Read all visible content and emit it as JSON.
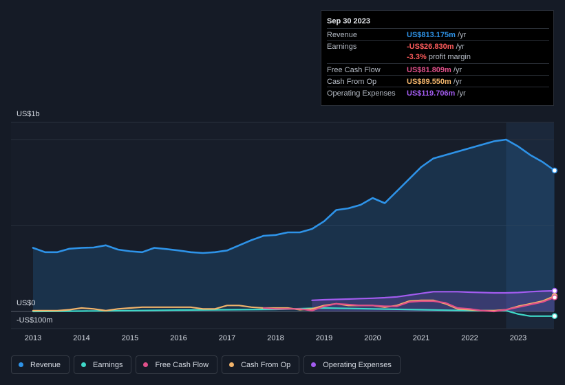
{
  "tooltip": {
    "date": "Sep 30 2023",
    "rows": [
      {
        "label": "Revenue",
        "value": "US$813.175m",
        "unit": "/yr",
        "color": "#2e93e8"
      },
      {
        "label": "Earnings",
        "value": "-US$26.830m",
        "unit": "/yr",
        "color": "#ff5c5c"
      },
      {
        "label": "Free Cash Flow",
        "value": "US$81.809m",
        "unit": "/yr",
        "color": "#e0508a"
      },
      {
        "label": "Cash From Op",
        "value": "US$89.550m",
        "unit": "/yr",
        "color": "#f2b46b"
      },
      {
        "label": "Operating Expenses",
        "value": "US$119.706m",
        "unit": "/yr",
        "color": "#a35cf0"
      }
    ],
    "margin_pct": "-3.3%",
    "margin_text": "profit margin"
  },
  "y_labels": {
    "top": "US$1b",
    "zero": "US$0",
    "bottom": "-US$100m"
  },
  "chart_data": {
    "type": "line",
    "title": "",
    "xlabel": "",
    "ylabel": "",
    "ylim": [
      -100,
      1100
    ],
    "x_ticks": [
      "2013",
      "2014",
      "2015",
      "2016",
      "2017",
      "2018",
      "2019",
      "2020",
      "2021",
      "2022",
      "2023"
    ],
    "highlight_start": 2022.75,
    "series": [
      {
        "name": "Revenue",
        "color": "#2e93e8",
        "fill": true,
        "x": [
          2013.0,
          2013.25,
          2013.5,
          2013.75,
          2014.0,
          2014.25,
          2014.5,
          2014.75,
          2015.0,
          2015.25,
          2015.5,
          2015.75,
          2016.0,
          2016.25,
          2016.5,
          2016.75,
          2017.0,
          2017.25,
          2017.5,
          2017.75,
          2018.0,
          2018.25,
          2018.5,
          2018.75,
          2019.0,
          2019.25,
          2019.5,
          2019.75,
          2020.0,
          2020.25,
          2020.5,
          2020.75,
          2021.0,
          2021.25,
          2021.5,
          2021.75,
          2022.0,
          2022.25,
          2022.5,
          2022.75,
          2023.0,
          2023.25,
          2023.5,
          2023.75
        ],
        "values": [
          370,
          345,
          345,
          365,
          370,
          372,
          385,
          360,
          350,
          345,
          370,
          363,
          355,
          345,
          340,
          345,
          355,
          385,
          415,
          440,
          445,
          460,
          460,
          480,
          525,
          590,
          600,
          620,
          660,
          630,
          700,
          770,
          840,
          890,
          910,
          930,
          950,
          970,
          990,
          1000,
          960,
          910,
          870,
          820
        ]
      },
      {
        "name": "Earnings",
        "color": "#3fd9c9",
        "fill": false,
        "x": [
          2013.0,
          2014.0,
          2015.0,
          2016.0,
          2017.0,
          2018.0,
          2018.75,
          2019.0,
          2020.0,
          2021.0,
          2022.0,
          2022.5,
          2022.75,
          2023.0,
          2023.25,
          2023.5,
          2023.75
        ],
        "values": [
          0,
          2,
          5,
          8,
          10,
          12,
          18,
          20,
          15,
          10,
          5,
          5,
          5,
          -15,
          -27,
          -27,
          -27
        ]
      },
      {
        "name": "Free Cash Flow",
        "color": "#e0508a",
        "fill": false,
        "x": [
          2017.75,
          2018.0,
          2018.5,
          2018.75,
          2019.0,
          2019.25,
          2019.5,
          2019.75,
          2020.0,
          2020.25,
          2020.5,
          2020.75,
          2021.0,
          2021.25,
          2021.5,
          2021.75,
          2022.0,
          2022.25,
          2022.5,
          2022.75,
          2023.0,
          2023.25,
          2023.5,
          2023.75
        ],
        "values": [
          20,
          15,
          15,
          5,
          30,
          45,
          40,
          35,
          35,
          30,
          30,
          55,
          60,
          60,
          50,
          20,
          15,
          5,
          0,
          10,
          25,
          40,
          55,
          82
        ]
      },
      {
        "name": "Cash From Op",
        "color": "#f2b46b",
        "fill": false,
        "x": [
          2013.0,
          2013.25,
          2013.5,
          2013.75,
          2014.0,
          2014.25,
          2014.5,
          2014.75,
          2015.0,
          2015.25,
          2015.5,
          2015.75,
          2016.0,
          2016.25,
          2016.5,
          2016.75,
          2017.0,
          2017.25,
          2017.5,
          2017.75,
          2018.0,
          2018.25,
          2018.5,
          2018.75,
          2019.0,
          2019.25,
          2019.5,
          2019.75,
          2020.0,
          2020.25,
          2020.5,
          2020.75,
          2021.0,
          2021.25,
          2021.5,
          2021.75,
          2022.0,
          2022.25,
          2022.5,
          2022.75,
          2023.0,
          2023.25,
          2023.5,
          2023.75
        ],
        "values": [
          5,
          5,
          5,
          10,
          20,
          15,
          5,
          15,
          20,
          25,
          25,
          25,
          25,
          25,
          15,
          15,
          35,
          35,
          25,
          20,
          20,
          20,
          10,
          15,
          35,
          45,
          35,
          35,
          35,
          25,
          35,
          60,
          65,
          65,
          45,
          15,
          10,
          5,
          5,
          10,
          30,
          45,
          60,
          90
        ]
      },
      {
        "name": "Operating Expenses",
        "color": "#a35cf0",
        "fill": true,
        "x": [
          2018.75,
          2019.0,
          2019.25,
          2019.5,
          2019.75,
          2020.0,
          2020.25,
          2020.5,
          2020.75,
          2021.0,
          2021.25,
          2021.5,
          2021.75,
          2022.0,
          2022.25,
          2022.5,
          2022.75,
          2023.0,
          2023.25,
          2023.5,
          2023.75
        ],
        "values": [
          65,
          68,
          70,
          72,
          75,
          77,
          80,
          85,
          95,
          105,
          115,
          115,
          115,
          112,
          110,
          108,
          108,
          110,
          115,
          118,
          120
        ]
      }
    ]
  },
  "legend": [
    {
      "label": "Revenue",
      "color": "#2e93e8"
    },
    {
      "label": "Earnings",
      "color": "#3fd9c9"
    },
    {
      "label": "Free Cash Flow",
      "color": "#e0508a"
    },
    {
      "label": "Cash From Op",
      "color": "#f2b46b"
    },
    {
      "label": "Operating Expenses",
      "color": "#a35cf0"
    }
  ]
}
